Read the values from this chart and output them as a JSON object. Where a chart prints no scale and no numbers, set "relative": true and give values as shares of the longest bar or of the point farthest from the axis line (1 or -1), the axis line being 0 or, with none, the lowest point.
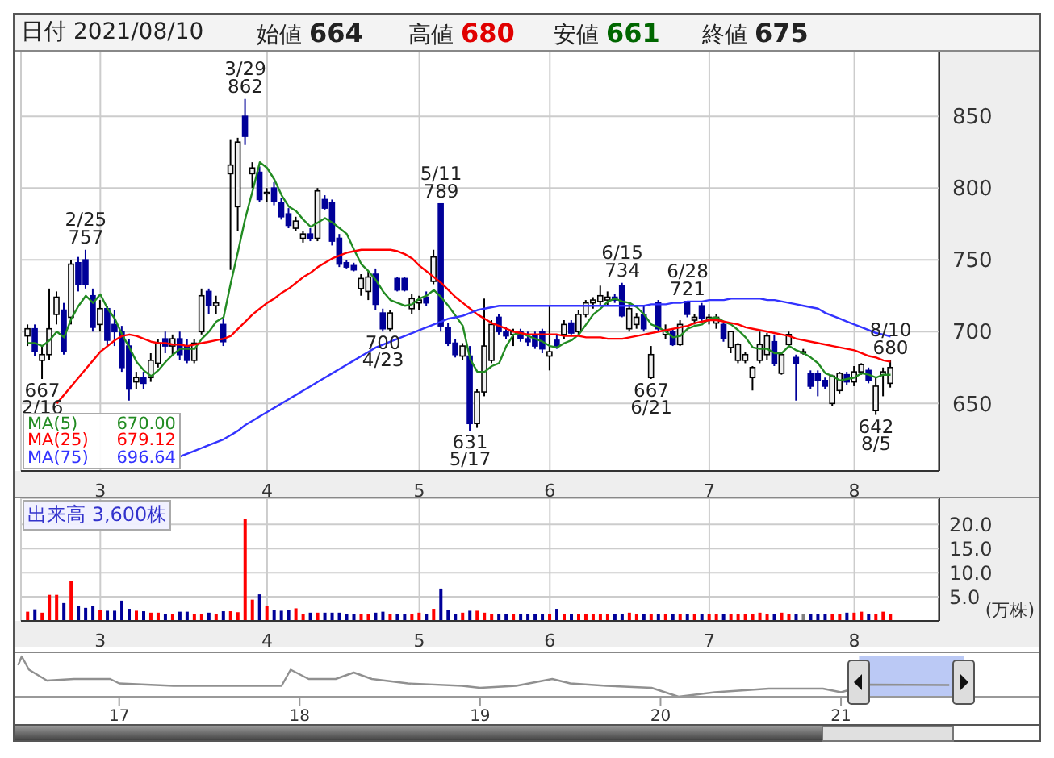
{
  "chart_data": [
    {
      "type": "candlestick",
      "categories": [
        null,
        null,
        null,
        null,
        null,
        null,
        null,
        null,
        null,
        null,
        "3",
        null,
        null,
        null,
        null,
        null,
        null,
        null,
        null,
        null,
        null,
        null,
        null,
        null,
        null,
        null,
        null,
        null,
        null,
        null,
        null,
        null,
        null,
        "4",
        null,
        null,
        null,
        null,
        null,
        null,
        null,
        null,
        null,
        null,
        null,
        null,
        null,
        null,
        null,
        null,
        null,
        null,
        null,
        null,
        "5",
        null,
        null,
        null,
        null,
        null,
        null,
        null,
        null,
        null,
        null,
        null,
        null,
        null,
        null,
        null,
        null,
        null,
        "6",
        null,
        null,
        null,
        null,
        null,
        null,
        null,
        null,
        null,
        null,
        null,
        null,
        null,
        null,
        null,
        null,
        null,
        null,
        null,
        null,
        null,
        "7",
        null,
        null,
        null,
        null,
        null,
        null,
        null,
        null,
        null,
        null,
        null,
        null,
        null,
        null,
        null,
        null,
        null,
        null,
        null,
        "8",
        null,
        null,
        null,
        null,
        null
      ],
      "ohlc": [
        [
          697,
          705,
          690,
          702
        ],
        [
          702,
          705,
          683,
          686
        ],
        [
          680,
          690,
          667,
          684
        ],
        [
          684,
          730,
          680,
          702
        ],
        [
          712,
          728,
          705,
          724
        ],
        [
          715,
          720,
          684,
          686
        ],
        [
          710,
          750,
          705,
          747
        ],
        [
          748,
          752,
          728,
          733
        ],
        [
          750,
          757,
          730,
          733
        ],
        [
          725,
          730,
          700,
          703
        ],
        [
          705,
          722,
          700,
          716
        ],
        [
          716,
          718,
          690,
          694
        ],
        [
          705,
          715,
          690,
          700
        ],
        [
          700,
          704,
          672,
          675
        ],
        [
          690,
          695,
          652,
          660
        ],
        [
          665,
          672,
          660,
          668
        ],
        [
          668,
          672,
          660,
          664
        ],
        [
          668,
          685,
          665,
          680
        ],
        [
          678,
          695,
          675,
          692
        ],
        [
          695,
          700,
          685,
          690
        ],
        [
          690,
          698,
          684,
          695
        ],
        [
          695,
          700,
          680,
          684
        ],
        [
          690,
          695,
          678,
          680
        ],
        [
          680,
          695,
          678,
          692
        ],
        [
          700,
          730,
          698,
          725
        ],
        [
          728,
          730,
          712,
          718
        ],
        [
          718,
          725,
          712,
          720
        ],
        [
          705,
          710,
          690,
          693
        ],
        [
          810,
          834,
          743,
          816
        ],
        [
          787,
          835,
          770,
          832
        ],
        [
          850,
          862,
          830,
          836
        ],
        [
          810,
          818,
          800,
          814
        ],
        [
          811,
          815,
          790,
          792
        ],
        [
          796,
          800,
          790,
          797
        ],
        [
          800,
          804,
          788,
          791
        ],
        [
          790,
          793,
          778,
          780
        ],
        [
          782,
          786,
          772,
          774
        ],
        [
          772,
          780,
          770,
          777
        ],
        [
          765,
          770,
          762,
          768
        ],
        [
          768,
          772,
          763,
          765
        ],
        [
          765,
          800,
          763,
          798
        ],
        [
          792,
          795,
          785,
          786
        ],
        [
          790,
          792,
          760,
          763
        ],
        [
          765,
          768,
          745,
          747
        ],
        [
          748,
          750,
          744,
          745
        ],
        [
          746,
          748,
          742,
          743
        ],
        [
          730,
          740,
          725,
          737
        ],
        [
          728,
          742,
          722,
          738
        ],
        [
          740,
          744,
          715,
          719
        ],
        [
          713,
          716,
          700,
          702
        ],
        [
          702,
          715,
          700,
          713
        ],
        [
          737,
          738,
          728,
          729
        ],
        [
          737,
          738,
          728,
          729
        ],
        [
          716,
          726,
          712,
          723
        ],
        [
          720,
          725,
          715,
          722
        ],
        [
          724,
          728,
          718,
          720
        ],
        [
          735,
          757,
          733,
          752
        ],
        [
          789,
          789,
          700,
          704
        ],
        [
          703,
          706,
          690,
          692
        ],
        [
          692,
          695,
          682,
          684
        ],
        [
          683,
          692,
          680,
          690
        ],
        [
          683,
          690,
          631,
          636
        ],
        [
          636,
          660,
          633,
          658
        ],
        [
          658,
          723,
          655,
          690
        ],
        [
          680,
          708,
          678,
          705
        ],
        [
          710,
          712,
          698,
          700
        ],
        [
          700,
          703,
          695,
          697
        ],
        [
          698,
          702,
          690,
          700
        ],
        [
          700,
          702,
          693,
          695
        ],
        [
          695,
          700,
          690,
          693
        ],
        [
          697,
          700,
          688,
          690
        ],
        [
          700,
          702,
          685,
          688
        ],
        [
          683,
          718,
          673,
          686
        ],
        [
          694,
          698,
          688,
          690
        ],
        [
          698,
          708,
          695,
          705
        ],
        [
          706,
          708,
          698,
          699
        ],
        [
          700,
          715,
          698,
          712
        ],
        [
          712,
          722,
          710,
          720
        ],
        [
          720,
          724,
          716,
          722
        ],
        [
          721,
          732,
          718,
          725
        ],
        [
          722,
          728,
          718,
          724
        ],
        [
          724,
          726,
          720,
          722
        ],
        [
          732,
          734,
          710,
          711
        ],
        [
          702,
          720,
          700,
          716
        ],
        [
          705,
          713,
          702,
          710
        ],
        [
          712,
          718,
          700,
          702
        ],
        [
          668,
          690,
          667,
          684
        ],
        [
          720,
          722,
          700,
          702
        ],
        [
          698,
          705,
          695,
          701
        ],
        [
          700,
          702,
          690,
          691
        ],
        [
          691,
          708,
          690,
          705
        ],
        [
          721,
          721,
          710,
          712
        ],
        [
          708,
          712,
          705,
          710
        ],
        [
          718,
          720,
          706,
          709
        ],
        [
          708,
          712,
          705,
          710
        ],
        [
          706,
          712,
          702,
          710
        ],
        [
          705,
          706,
          693,
          695
        ],
        [
          689,
          700,
          685,
          700
        ],
        [
          680,
          692,
          678,
          691
        ],
        [
          680,
          686,
          678,
          684
        ],
        [
          668,
          676,
          659,
          675
        ],
        [
          680,
          700,
          678,
          691
        ],
        [
          684,
          699,
          680,
          697
        ],
        [
          693,
          698,
          676,
          678
        ],
        [
          671,
          686,
          670,
          684
        ],
        [
          691,
          700,
          690,
          698
        ],
        [
          682,
          684,
          652,
          678
        ],
        [
          686,
          688,
          684,
          686
        ],
        [
          671,
          673,
          660,
          662
        ],
        [
          671,
          673,
          655,
          666
        ],
        [
          666,
          668,
          660,
          662
        ],
        [
          650,
          670,
          648,
          669
        ],
        [
          659,
          672,
          657,
          671
        ],
        [
          670,
          672,
          663,
          665
        ],
        [
          665,
          676,
          662,
          672
        ],
        [
          672,
          678,
          670,
          677
        ],
        [
          673,
          675,
          664,
          666
        ],
        [
          645,
          668,
          642,
          662
        ],
        [
          670,
          675,
          655,
          672
        ],
        [
          664,
          680,
          661,
          675
        ]
      ],
      "colors": [
        "#f0f0f0",
        "#000099",
        "#f0f0f0",
        "#f0f0f0",
        "#f0f0f0",
        "#000099",
        "#f0f0f0",
        "#000099",
        "#000099",
        "#000099",
        "#f0f0f0",
        "#000099",
        "#000099",
        "#000099",
        "#000099",
        "#f0f0f0",
        "#000099",
        "#f0f0f0",
        "#f0f0f0",
        "#000099",
        "#f0f0f0",
        "#000099",
        "#000099",
        "#f0f0f0",
        "#f0f0f0",
        "#000099",
        "#f0f0f0",
        "#000099",
        "#f0f0f0",
        "#f0f0f0",
        "#000099",
        "#f0f0f0",
        "#000099",
        "#f0f0f0",
        "#000099",
        "#000099",
        "#000099",
        "#f0f0f0",
        "#f0f0f0",
        "#000099",
        "#f0f0f0",
        "#000099",
        "#000099",
        "#000099",
        "#000099",
        "#000099",
        "#f0f0f0",
        "#f0f0f0",
        "#000099",
        "#000099",
        "#f0f0f0",
        "#000099",
        "#000099",
        "#f0f0f0",
        "#f0f0f0",
        "#000099",
        "#f0f0f0",
        "#000099",
        "#000099",
        "#000099",
        "#f0f0f0",
        "#000099",
        "#f0f0f0",
        "#f0f0f0",
        "#f0f0f0",
        "#000099",
        "#000099",
        "#f0f0f0",
        "#000099",
        "#000099",
        "#000099",
        "#000099",
        "#f0f0f0",
        "#000099",
        "#f0f0f0",
        "#000099",
        "#f0f0f0",
        "#f0f0f0",
        "#f0f0f0",
        "#f0f0f0",
        "#f0f0f0",
        "#000099",
        "#000099",
        "#f0f0f0",
        "#f0f0f0",
        "#000099",
        "#f0f0f0",
        "#000099",
        "#f0f0f0",
        "#000099",
        "#f0f0f0",
        "#000099",
        "#f0f0f0",
        "#000099",
        "#f0f0f0",
        "#f0f0f0",
        "#000099",
        "#f0f0f0",
        "#f0f0f0",
        "#f0f0f0",
        "#f0f0f0",
        "#f0f0f0",
        "#f0f0f0",
        "#000099",
        "#f0f0f0",
        "#f0f0f0",
        "#000099",
        "#f0f0f0",
        "#000099",
        "#000099",
        "#000099",
        "#f0f0f0",
        "#f0f0f0",
        "#000099",
        "#f0f0f0",
        "#f0f0f0",
        "#000099",
        "#f0f0f0",
        "#f0f0f0",
        "#f0f0f0"
      ],
      "series": [
        {
          "type": "line",
          "name": "MA(5)",
          "color": "#228b22",
          "values": [
            692,
            692,
            690,
            694,
            700,
            696,
            709,
            718,
            725,
            720,
            726,
            716,
            709,
            698,
            689,
            679,
            673,
            669,
            673,
            679,
            684,
            688,
            688,
            688,
            695,
            700,
            707,
            710,
            734,
            756,
            779,
            798,
            818,
            814,
            806,
            795,
            787,
            784,
            778,
            773,
            776,
            779,
            776,
            772,
            768,
            757,
            747,
            742,
            736,
            728,
            722,
            720,
            718,
            719,
            723,
            725,
            729,
            724,
            718,
            711,
            704,
            681,
            672,
            672,
            676,
            678,
            690,
            698,
            699,
            697,
            695,
            693,
            690,
            689,
            692,
            694,
            698,
            705,
            712,
            716,
            721,
            723,
            721,
            720,
            717,
            712,
            705,
            703,
            700,
            696,
            697,
            702,
            704,
            705,
            709,
            710,
            707,
            705,
            701,
            696,
            689,
            688,
            688,
            685,
            685,
            690,
            687,
            685,
            682,
            678,
            671,
            669,
            666,
            667,
            668,
            671,
            670,
            668,
            670,
            670
          ]
        },
        {
          "type": "line",
          "name": "MA(25)",
          "color": "#ff0000",
          "values": [
            null,
            null,
            null,
            null,
            650,
            656,
            662,
            668,
            674,
            680,
            686,
            690,
            694,
            697,
            698,
            697,
            695,
            693,
            692,
            692,
            691,
            691,
            690,
            691,
            692,
            693,
            694,
            695,
            697,
            702,
            707,
            712,
            716,
            720,
            723,
            727,
            730,
            734,
            738,
            741,
            745,
            748,
            751,
            753,
            755,
            756,
            757,
            757,
            757,
            757,
            757,
            756,
            754,
            751,
            746,
            742,
            738,
            734,
            729,
            724,
            720,
            716,
            712,
            709,
            706,
            704,
            702,
            700,
            699,
            698,
            698,
            698,
            698,
            698,
            697,
            697,
            697,
            696,
            696,
            696,
            695,
            695,
            695,
            696,
            697,
            698,
            699,
            700,
            701,
            702,
            703,
            704,
            706,
            707,
            708,
            708,
            707,
            706,
            705,
            703,
            702,
            701,
            700,
            699,
            698,
            697,
            695,
            694,
            693,
            692,
            691,
            690,
            689,
            688,
            687,
            685,
            683,
            682,
            680,
            679.12
          ]
        },
        {
          "type": "line",
          "name": "MA(75)",
          "color": "#3333ff",
          "values": [
            null,
            null,
            null,
            null,
            null,
            null,
            null,
            null,
            null,
            null,
            null,
            null,
            null,
            null,
            null,
            null,
            null,
            null,
            null,
            null,
            null,
            613,
            615,
            617,
            619,
            621,
            623,
            625,
            628,
            631,
            635,
            638,
            641,
            644,
            647,
            650,
            653,
            656,
            659,
            662,
            665,
            668,
            671,
            674,
            677,
            680,
            683,
            686,
            689,
            691,
            693,
            695,
            697,
            699,
            701,
            703,
            705,
            707,
            709,
            710,
            711,
            713,
            715,
            716,
            717,
            718,
            718,
            718,
            718,
            718,
            718,
            718,
            718,
            718,
            718,
            718,
            718,
            718,
            718,
            718,
            718,
            718,
            718,
            718,
            718,
            718,
            719,
            719,
            719,
            720,
            720,
            721,
            721,
            721,
            722,
            722,
            722,
            723,
            723,
            723,
            723,
            723,
            722,
            722,
            721,
            720,
            719,
            718,
            717,
            716,
            713,
            711,
            709,
            707,
            705,
            703,
            701,
            699,
            698,
            696.64
          ]
        }
      ],
      "ylim": [
        603,
        895
      ],
      "yticks": [
        650,
        700,
        750,
        800,
        850
      ],
      "grid": true,
      "legend": "bottom left",
      "annotations": [
        "日付 2021/08/10",
        "始値 664",
        "高値 680",
        "安値 661",
        "終値 675",
        "670.00",
        "679.12",
        "696.64",
        {
          "text": "667 2/16",
          "y": 667
        },
        {
          "text": "2/25 757",
          "y": 757
        },
        {
          "text": "3/29 862",
          "y": 862
        },
        {
          "text": "700 4/23",
          "y": 700
        },
        {
          "text": "5/11 789",
          "y": 789
        },
        {
          "text": "631 5/17",
          "y": 631
        },
        {
          "text": "6/15 734",
          "y": 734
        },
        {
          "text": "667 6/21",
          "y": 667
        },
        {
          "text": "6/28 721",
          "y": 721
        },
        {
          "text": "642 8/5",
          "y": 642
        },
        {
          "text": "8/10 680",
          "y": 680
        }
      ]
    },
    {
      "type": "bar",
      "title": "出来高 3,600株",
      "ylabel": "(万株)",
      "categories": [
        null,
        null,
        null,
        null,
        null,
        null,
        null,
        null,
        null,
        null,
        "3",
        null,
        null,
        null,
        null,
        null,
        null,
        null,
        null,
        null,
        null,
        null,
        null,
        null,
        null,
        null,
        null,
        null,
        null,
        null,
        null,
        null,
        null,
        "4",
        null,
        null,
        null,
        null,
        null,
        null,
        null,
        null,
        null,
        null,
        null,
        null,
        null,
        null,
        null,
        null,
        null,
        null,
        null,
        null,
        "5",
        null,
        null,
        null,
        null,
        null,
        null,
        null,
        null,
        null,
        null,
        null,
        null,
        null,
        null,
        null,
        null,
        null,
        "6",
        null,
        null,
        null,
        null,
        null,
        null,
        null,
        null,
        null,
        null,
        null,
        null,
        null,
        null,
        null,
        null,
        null,
        null,
        null,
        null,
        null,
        "7",
        null,
        null,
        null,
        null,
        null,
        null,
        null,
        null,
        null,
        null,
        null,
        null,
        null,
        null,
        null,
        null,
        null,
        null,
        null,
        "8",
        null,
        null,
        null,
        null,
        null
      ],
      "values": [
        1.9,
        2.4,
        1.7,
        5.4,
        5.4,
        3.7,
        8.2,
        3.1,
        2.7,
        3.1,
        2.3,
        2.1,
        2.1,
        4.2,
        2.5,
        2.1,
        2.0,
        1.7,
        1.7,
        1.5,
        1.5,
        1.9,
        1.9,
        1.5,
        1.5,
        1.7,
        1.5,
        2.0,
        2.0,
        1.8,
        21.2,
        4.4,
        5.5,
        3.1,
        2.2,
        2.1,
        2.3,
        2.6,
        1.5,
        1.7,
        1.7,
        1.7,
        1.7,
        1.7,
        1.5,
        1.5,
        1.5,
        1.5,
        1.7,
        1.9,
        1.5,
        1.5,
        1.5,
        1.5,
        1.7,
        1.5,
        2.5,
        6.7,
        2.3,
        1.5,
        1.7,
        2.1,
        2.1,
        1.7,
        1.5,
        1.5,
        1.5,
        1.5,
        1.5,
        1.5,
        1.5,
        1.5,
        1.5,
        2.5,
        1.5,
        1.5,
        1.5,
        1.5,
        1.5,
        1.5,
        1.5,
        1.5,
        1.5,
        1.7,
        1.5,
        1.5,
        1.5,
        1.5,
        1.5,
        1.5,
        1.5,
        1.5,
        1.5,
        1.5,
        1.5,
        1.5,
        1.5,
        1.5,
        1.5,
        1.5,
        1.5,
        1.7,
        1.5,
        1.5,
        1.7,
        1.5,
        1.5,
        1.5,
        1.5,
        1.5,
        1.5,
        1.5,
        1.5,
        1.7,
        1.7,
        1.9,
        1.5,
        1.5,
        1.9,
        1.5
      ],
      "colors": [
        "#ff0000",
        "#000099",
        "#ff0000",
        "#ff0000",
        "#ff0000",
        "#000099",
        "#ff0000",
        "#000099",
        "#000099",
        "#000099",
        "#ff0000",
        "#000099",
        "#000099",
        "#000099",
        "#000099",
        "#ff0000",
        "#000099",
        "#ff0000",
        "#ff0000",
        "#000099",
        "#ff0000",
        "#000099",
        "#000099",
        "#ff0000",
        "#ff0000",
        "#000099",
        "#ff0000",
        "#000099",
        "#ff0000",
        "#ff0000",
        "#ff0000",
        "#ff0000",
        "#000099",
        "#ff0000",
        "#000099",
        "#000099",
        "#000099",
        "#ff0000",
        "#ff0000",
        "#000099",
        "#ff0000",
        "#000099",
        "#000099",
        "#000099",
        "#000099",
        "#000099",
        "#ff0000",
        "#ff0000",
        "#000099",
        "#000099",
        "#ff0000",
        "#000099",
        "#000099",
        "#ff0000",
        "#ff0000",
        "#000099",
        "#ff0000",
        "#000099",
        "#000099",
        "#000099",
        "#ff0000",
        "#000099",
        "#ff0000",
        "#ff0000",
        "#ff0000",
        "#000099",
        "#000099",
        "#ff0000",
        "#000099",
        "#000099",
        "#000099",
        "#000099",
        "#ff0000",
        "#000099",
        "#ff0000",
        "#000099",
        "#ff0000",
        "#ff0000",
        "#ff0000",
        "#ff0000",
        "#ff0000",
        "#000099",
        "#000099",
        "#ff0000",
        "#ff0000",
        "#000099",
        "#ff0000",
        "#000099",
        "#ff0000",
        "#000099",
        "#ff0000",
        "#000099",
        "#ff0000",
        "#000099",
        "#ff0000",
        "#ff0000",
        "#000099",
        "#ff0000",
        "#ff0000",
        "#ff0000",
        "#ff0000",
        "#ff0000",
        "#ff0000",
        "#000099",
        "#ff0000",
        "#ff0000",
        "#000099",
        "#808080",
        "#000099",
        "#000099",
        "#000099",
        "#ff0000",
        "#ff0000",
        "#000099",
        "#ff0000",
        "#ff0000",
        "#000099",
        "#ff0000",
        "#ff0000",
        "#ff0000"
      ],
      "ylim": [
        0,
        25.4
      ],
      "yticks": [
        {
          "value": 5,
          "label": "5.0"
        },
        {
          "value": 10,
          "label": "10.0"
        },
        {
          "value": 15,
          "label": "15.0"
        },
        {
          "value": 20,
          "label": "20.0"
        }
      ],
      "grid": true
    },
    {
      "type": "line",
      "relative": true,
      "x": [
        2016.44,
        2016.46,
        2016.5,
        2016.6,
        2016.75,
        2016.95,
        2017.0,
        2017.3,
        2017.6,
        2017.9,
        2017.95,
        2018.05,
        2018.2,
        2018.3,
        2018.4,
        2018.6,
        2018.9,
        2019.0,
        2019.2,
        2019.4,
        2019.5,
        2019.7,
        2019.95,
        2020.1,
        2020.3,
        2020.6,
        2020.9,
        2021.0,
        2021.15,
        2021.6
      ],
      "series": [
        {
          "color": "#909090",
          "values": [
            0.78,
            1.0,
            0.67,
            0.4,
            0.44,
            0.44,
            0.33,
            0.27,
            0.27,
            0.27,
            0.67,
            0.44,
            0.44,
            0.6,
            0.44,
            0.33,
            0.27,
            0.22,
            0.27,
            0.44,
            0.33,
            0.27,
            0.22,
            0.0,
            0.11,
            0.2,
            0.2,
            0.11,
            0.3,
            0.29
          ]
        }
      ],
      "xlim": [
        2016.42,
        2022.1
      ],
      "xticks": [
        {
          "value": 2017,
          "label": "17"
        },
        {
          "value": 2018,
          "label": "18"
        },
        {
          "value": 2019,
          "label": "19"
        },
        {
          "value": 2020,
          "label": "20"
        },
        {
          "value": 2021,
          "label": "21"
        }
      ],
      "bands": [
        {
          "axis": "x",
          "from": 2021.1,
          "to": 2021.68,
          "color": "#aabbf2"
        }
      ]
    }
  ]
}
